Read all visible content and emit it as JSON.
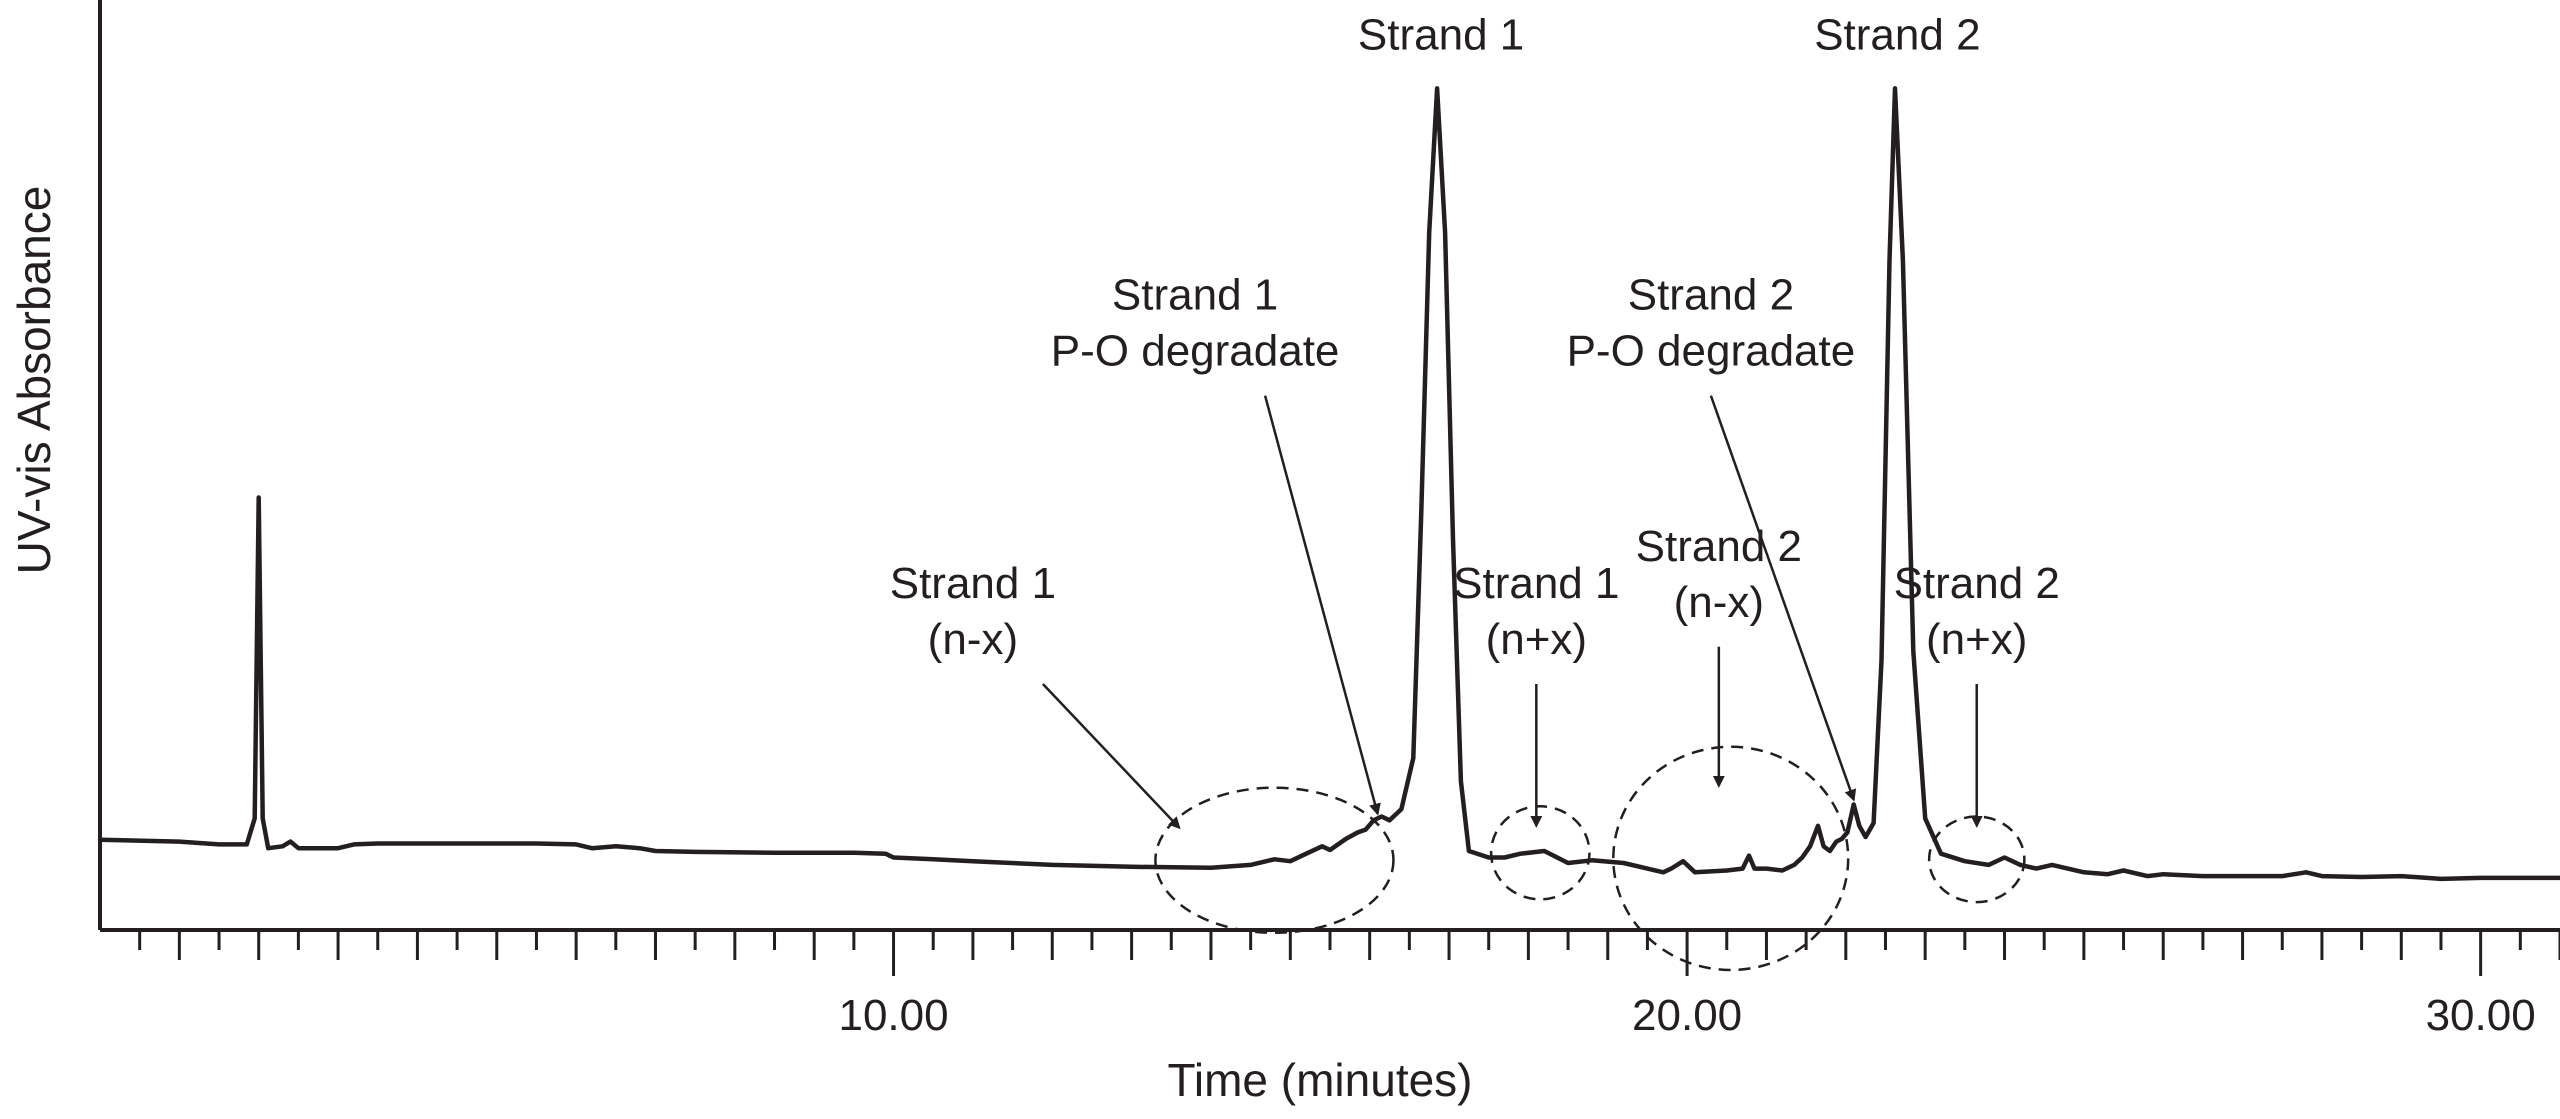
{
  "chart_data": {
    "type": "line",
    "xlabel": "Time (minutes)",
    "ylabel": "UV-vis Absorbance",
    "xlim": [
      0,
      31
    ],
    "ylim": [
      0,
      1
    ],
    "grid": false,
    "x_tick_labels": [
      "10.00",
      "20.00",
      "30.00"
    ],
    "x_major_ticks": [
      10,
      20,
      30
    ],
    "x_minor_step": 0.5,
    "series": [
      {
        "points": [
          [
            0.0,
            0.097
          ],
          [
            1.0,
            0.095
          ],
          [
            1.5,
            0.092
          ],
          [
            1.85,
            0.092
          ],
          [
            1.95,
            0.12
          ],
          [
            2.0,
            0.465
          ],
          [
            2.05,
            0.12
          ],
          [
            2.12,
            0.088
          ],
          [
            2.3,
            0.09
          ],
          [
            2.4,
            0.095
          ],
          [
            2.5,
            0.088
          ],
          [
            3.0,
            0.088
          ],
          [
            3.2,
            0.092
          ],
          [
            3.5,
            0.093
          ],
          [
            4.5,
            0.093
          ],
          [
            5.5,
            0.093
          ],
          [
            6.0,
            0.092
          ],
          [
            6.2,
            0.088
          ],
          [
            6.5,
            0.09
          ],
          [
            6.8,
            0.088
          ],
          [
            7.0,
            0.085
          ],
          [
            7.5,
            0.084
          ],
          [
            8.5,
            0.083
          ],
          [
            9.5,
            0.083
          ],
          [
            9.9,
            0.082
          ],
          [
            10.0,
            0.078
          ],
          [
            10.5,
            0.076
          ],
          [
            11.0,
            0.074
          ],
          [
            12.0,
            0.07
          ],
          [
            13.0,
            0.068
          ],
          [
            14.0,
            0.067
          ],
          [
            14.5,
            0.07
          ],
          [
            14.8,
            0.076
          ],
          [
            15.0,
            0.074
          ],
          [
            15.2,
            0.082
          ],
          [
            15.4,
            0.09
          ],
          [
            15.5,
            0.086
          ],
          [
            15.7,
            0.098
          ],
          [
            15.85,
            0.105
          ],
          [
            15.95,
            0.108
          ],
          [
            16.05,
            0.118
          ],
          [
            16.15,
            0.122
          ],
          [
            16.25,
            0.118
          ],
          [
            16.4,
            0.13
          ],
          [
            16.55,
            0.185
          ],
          [
            16.65,
            0.45
          ],
          [
            16.75,
            0.75
          ],
          [
            16.85,
            0.905
          ],
          [
            16.95,
            0.75
          ],
          [
            17.05,
            0.42
          ],
          [
            17.15,
            0.16
          ],
          [
            17.25,
            0.085
          ],
          [
            17.5,
            0.078
          ],
          [
            17.7,
            0.078
          ],
          [
            17.9,
            0.082
          ],
          [
            18.2,
            0.085
          ],
          [
            18.5,
            0.072
          ],
          [
            18.8,
            0.075
          ],
          [
            19.2,
            0.072
          ],
          [
            19.5,
            0.066
          ],
          [
            19.7,
            0.062
          ],
          [
            19.8,
            0.066
          ],
          [
            19.95,
            0.074
          ],
          [
            20.1,
            0.062
          ],
          [
            20.3,
            0.063
          ],
          [
            20.5,
            0.064
          ],
          [
            20.7,
            0.066
          ],
          [
            20.78,
            0.08
          ],
          [
            20.85,
            0.066
          ],
          [
            21.0,
            0.066
          ],
          [
            21.2,
            0.064
          ],
          [
            21.35,
            0.07
          ],
          [
            21.45,
            0.078
          ],
          [
            21.55,
            0.09
          ],
          [
            21.65,
            0.112
          ],
          [
            21.72,
            0.09
          ],
          [
            21.8,
            0.085
          ],
          [
            21.88,
            0.095
          ],
          [
            21.95,
            0.098
          ],
          [
            22.02,
            0.105
          ],
          [
            22.1,
            0.135
          ],
          [
            22.17,
            0.112
          ],
          [
            22.25,
            0.1
          ],
          [
            22.35,
            0.115
          ],
          [
            22.45,
            0.29
          ],
          [
            22.55,
            0.72
          ],
          [
            22.62,
            0.905
          ],
          [
            22.72,
            0.72
          ],
          [
            22.85,
            0.3
          ],
          [
            23.0,
            0.12
          ],
          [
            23.2,
            0.082
          ],
          [
            23.5,
            0.074
          ],
          [
            23.8,
            0.07
          ],
          [
            24.0,
            0.078
          ],
          [
            24.2,
            0.07
          ],
          [
            24.4,
            0.066
          ],
          [
            24.6,
            0.07
          ],
          [
            25.0,
            0.062
          ],
          [
            25.3,
            0.06
          ],
          [
            25.5,
            0.064
          ],
          [
            25.8,
            0.058
          ],
          [
            26.0,
            0.06
          ],
          [
            26.5,
            0.058
          ],
          [
            27.0,
            0.058
          ],
          [
            27.5,
            0.058
          ],
          [
            27.8,
            0.062
          ],
          [
            28.0,
            0.058
          ],
          [
            28.5,
            0.057
          ],
          [
            29.0,
            0.058
          ],
          [
            29.5,
            0.055
          ],
          [
            30.0,
            0.056
          ],
          [
            30.5,
            0.056
          ],
          [
            31.0,
            0.056
          ]
        ],
        "color": "#231f20"
      }
    ],
    "annotations": [
      {
        "lines": [
          "Strand 1"
        ],
        "at": [
          16.9,
          0.99
        ],
        "kind": "peak-label"
      },
      {
        "lines": [
          "Strand 2"
        ],
        "at": [
          22.65,
          0.99
        ],
        "kind": "peak-label"
      },
      {
        "lines": [
          "Strand 1",
          "P-O degradate"
        ],
        "at": [
          13.8,
          0.71
        ],
        "arrow_to": [
          16.1,
          0.125
        ]
      },
      {
        "lines": [
          "Strand 2",
          "P-O degradate"
        ],
        "at": [
          20.3,
          0.71
        ],
        "arrow_to": [
          22.1,
          0.14
        ]
      },
      {
        "lines": [
          "Strand 1",
          "(n-x)"
        ],
        "at": [
          11.0,
          0.4
        ],
        "arrow_to": [
          13.6,
          0.11
        ],
        "ellipse": {
          "cx": 14.8,
          "cy": 0.075,
          "rx": 1.5,
          "ry": 0.078
        }
      },
      {
        "lines": [
          "Strand 1",
          "(n+x)"
        ],
        "at": [
          18.1,
          0.4
        ],
        "arrow_to": [
          18.1,
          0.112
        ],
        "ellipse": {
          "cx": 18.15,
          "cy": 0.083,
          "rx": 0.62,
          "ry": 0.05
        }
      },
      {
        "lines": [
          "Strand 2",
          "(n-x)"
        ],
        "at": [
          20.4,
          0.44
        ],
        "arrow_to": [
          20.4,
          0.155
        ],
        "ellipse": {
          "cx": 20.55,
          "cy": 0.077,
          "rx": 1.48,
          "ry": 0.12
        }
      },
      {
        "lines": [
          "Strand 2",
          "(n+x)"
        ],
        "at": [
          23.65,
          0.4
        ],
        "arrow_to": [
          23.65,
          0.112
        ],
        "ellipse": {
          "cx": 23.65,
          "cy": 0.076,
          "rx": 0.6,
          "ry": 0.046
        }
      }
    ]
  }
}
